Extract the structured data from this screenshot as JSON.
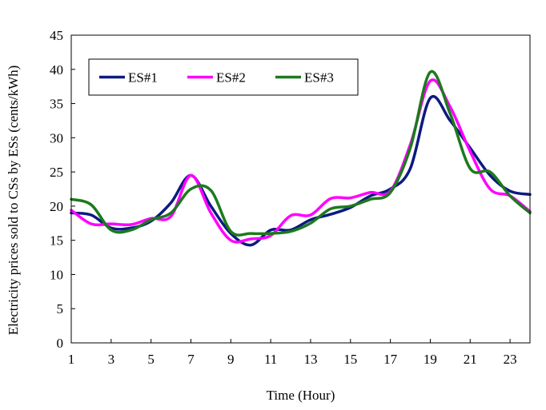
{
  "chart_data": {
    "type": "line",
    "xlabel": "Time (Hour)",
    "ylabel": "Electricity prices sold to CSs by ESs (cents/kWh)",
    "xlim": [
      1,
      24
    ],
    "ylim": [
      0,
      45
    ],
    "xticks": [
      1,
      3,
      5,
      7,
      9,
      11,
      13,
      15,
      17,
      19,
      21,
      23
    ],
    "yticks": [
      0,
      5,
      10,
      15,
      20,
      25,
      30,
      35,
      40,
      45
    ],
    "grid": false,
    "legend_position": "top-left",
    "x": [
      1,
      2,
      3,
      4,
      5,
      6,
      7,
      8,
      9,
      10,
      11,
      12,
      13,
      14,
      15,
      16,
      17,
      18,
      19,
      20,
      21,
      22,
      23,
      24
    ],
    "series": [
      {
        "name": "ES#1",
        "color": "#0d1a80",
        "values": [
          19.0,
          18.7,
          16.8,
          16.8,
          17.8,
          20.5,
          24.5,
          20.0,
          16.0,
          14.3,
          16.5,
          16.5,
          18.0,
          18.8,
          19.8,
          21.5,
          22.5,
          25.5,
          35.8,
          32.5,
          28.5,
          24.5,
          22.2,
          21.7
        ]
      },
      {
        "name": "ES#2",
        "color": "#ff00ff",
        "values": [
          19.4,
          17.4,
          17.4,
          17.3,
          18.2,
          18.5,
          24.5,
          19.0,
          15.0,
          15.2,
          15.7,
          18.6,
          18.7,
          21.1,
          21.2,
          22.0,
          22.2,
          29.0,
          38.3,
          34.5,
          28.0,
          22.5,
          21.5,
          19.2
        ]
      },
      {
        "name": "ES#3",
        "color": "#1c7a1c",
        "values": [
          21.0,
          20.2,
          16.5,
          16.5,
          18.0,
          19.0,
          22.5,
          22.3,
          16.3,
          16.0,
          16.0,
          16.3,
          17.5,
          19.6,
          20.0,
          21.0,
          22.0,
          28.5,
          39.6,
          33.5,
          25.5,
          25.0,
          21.5,
          19.0
        ]
      }
    ]
  }
}
